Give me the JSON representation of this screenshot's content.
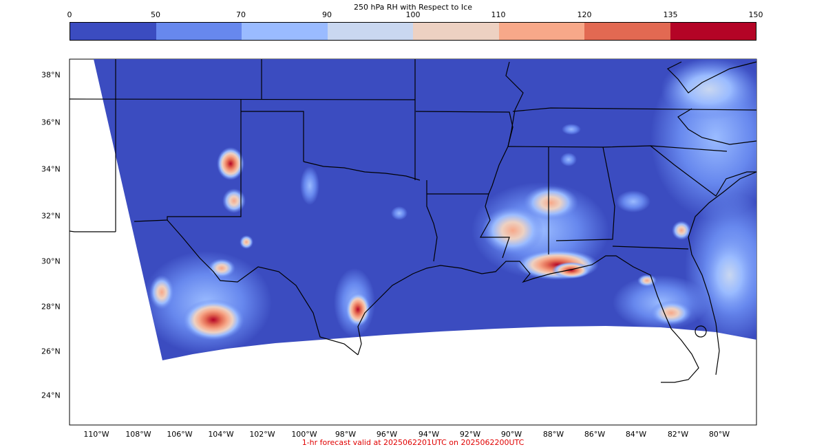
{
  "colorbar": {
    "title": "250 hPa RH with Respect to Ice",
    "ticks": [
      "0",
      "50",
      "70",
      "90",
      "100",
      "110",
      "120",
      "135",
      "150"
    ],
    "colors": [
      "#3b4cc0",
      "#6788ee",
      "#9abbff",
      "#c9d7f0",
      "#edd1c2",
      "#f7a889",
      "#e26952",
      "#b40426"
    ]
  },
  "map": {
    "lat_labels": [
      "38°N",
      "36°N",
      "34°N",
      "32°N",
      "30°N",
      "28°N",
      "26°N",
      "24°N"
    ],
    "lon_labels": [
      "110°W",
      "108°W",
      "106°W",
      "104°W",
      "102°W",
      "100°W",
      "98°W",
      "96°W",
      "94°W",
      "92°W",
      "90°W",
      "88°W",
      "86°W",
      "84°W",
      "82°W",
      "80°W"
    ],
    "base_color": "#3b4cc0",
    "outside_domain_color": "#ffffff",
    "border_color": "#000000"
  },
  "footer": {
    "text": "1-hr forecast valid at 2025062201UTC on 2025062200UTC",
    "color": "#e00000"
  }
}
